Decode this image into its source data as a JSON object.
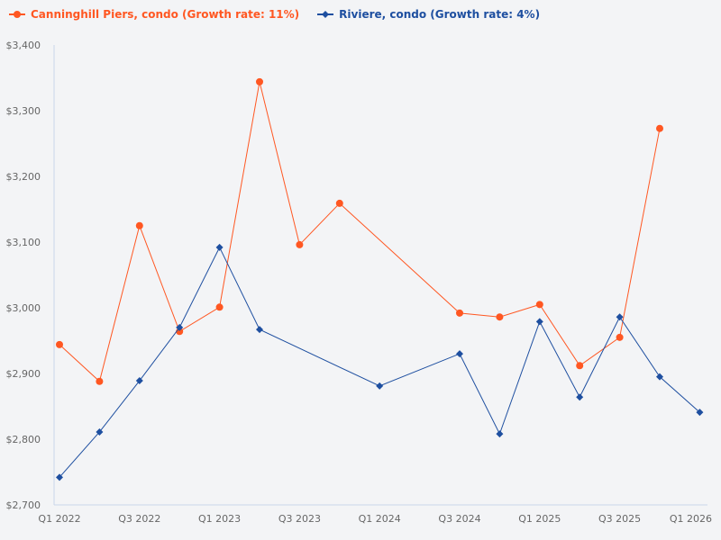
{
  "chart_data": {
    "type": "line",
    "title": "",
    "xlabel": "",
    "ylabel": "",
    "ylim": [
      2700,
      3400
    ],
    "yticks": [
      "$2,700",
      "$2,800",
      "$2,900",
      "$3,000",
      "$3,100",
      "$3,200",
      "$3,300",
      "$3,400"
    ],
    "ytick_values": [
      2700,
      2800,
      2900,
      3000,
      3100,
      3200,
      3300,
      3400
    ],
    "categories": [
      "Q1 2022",
      "Q2 2022",
      "Q3 2022",
      "Q4 2022",
      "Q1 2023",
      "Q2 2023",
      "Q3 2023",
      "Q4 2023",
      "Q1 2024",
      "Q2 2024",
      "Q3 2024",
      "Q4 2024",
      "Q1 2025",
      "Q2 2025",
      "Q3 2025",
      "Q4 2025",
      "Q1 2026"
    ],
    "xtick_labels": [
      "Q1 2022",
      "Q3 2022",
      "Q1 2023",
      "Q3 2023",
      "Q1 2024",
      "Q3 2024",
      "Q1 2025",
      "Q3 2025",
      "Q1 2026"
    ],
    "grid": false,
    "legend_position": "top-left",
    "series": [
      {
        "name": "Canninghill Piers, condo (Growth rate: 11%)",
        "color": "#ff5722",
        "marker": "circle",
        "values": [
          2944,
          2888,
          3125,
          2964,
          3001,
          3344,
          3096,
          3159,
          null,
          null,
          2992,
          2986,
          3005,
          2912,
          2955,
          3273,
          null
        ]
      },
      {
        "name": "Riviere, condo (Growth rate: 4%)",
        "color": "#1e4fa0",
        "marker": "diamond",
        "values": [
          2742,
          2811,
          2889,
          2970,
          3092,
          2967,
          null,
          null,
          2881,
          null,
          2930,
          2808,
          2979,
          2864,
          2986,
          2895,
          2841
        ]
      }
    ]
  }
}
